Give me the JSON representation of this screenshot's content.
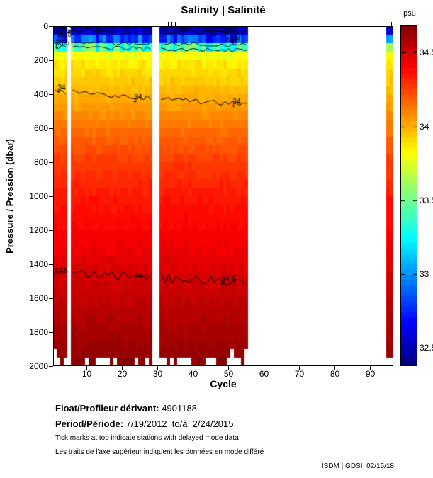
{
  "title": "Salinity | Salinité",
  "colorbar": {
    "unit": "psu",
    "ticks": [
      34.5,
      34,
      33.5,
      33,
      32.5
    ]
  },
  "axes": {
    "x_label": "Cycle",
    "y_label": "Pressure / Pression (dbar)",
    "x_ticks": [
      10,
      20,
      30,
      40,
      50,
      60,
      70,
      80,
      90
    ],
    "y_ticks": [
      0,
      200,
      400,
      600,
      800,
      1000,
      1200,
      1400,
      1600,
      1800,
      2000
    ]
  },
  "footer": {
    "float_label": "Float/Profileur dérivant:",
    "float_value": " 4901188",
    "period_label": "Period/Période:",
    "period_value": " 7/19/2012  to/à  2/24/2015",
    "note_en": "Tick marks at top indicate stations with delayed mode data",
    "note_fr": "Les traits de l'axe supérieur indiquent les données en mode différé",
    "credit": "ISDM | GDSI  02/15/18"
  },
  "chart_data": {
    "type": "heatmap",
    "title": "Salinity | Salinité",
    "xlabel": "Cycle",
    "ylabel": "Pressure / Pression (dbar)",
    "colorbar_label": "psu",
    "colormap": "jet",
    "value_range_psu": [
      32.38,
      34.68
    ],
    "colorbar_tick_values": [
      34.5,
      34,
      33.5,
      33,
      32.5
    ],
    "x_range_cycles": [
      0.5,
      96.5
    ],
    "y_range_dbar": [
      0,
      2000
    ],
    "grid": false,
    "cycles_with_data": [
      [
        1,
        4
      ],
      [
        6,
        28
      ],
      [
        31,
        55
      ],
      [
        95,
        96
      ]
    ],
    "representative_profile": {
      "depth_dbar": [
        0,
        50,
        100,
        150,
        200,
        300,
        400,
        500,
        600,
        800,
        1000,
        1200,
        1400,
        1500,
        1600,
        1800,
        2000
      ],
      "salinity_psu": [
        32.45,
        32.6,
        33.1,
        33.75,
        33.85,
        33.92,
        33.99,
        34.06,
        34.14,
        34.26,
        34.34,
        34.4,
        34.46,
        34.5,
        34.53,
        34.59,
        34.65
      ]
    },
    "cell_size": {
      "cycles": 1,
      "dbar": 50
    },
    "contours": [
      {
        "value": 32.5,
        "segments": [
          [
            1,
            16
          ],
          [
            33,
            55
          ]
        ],
        "depth_start": 22,
        "depth_end": 34,
        "wiggle": 12
      },
      {
        "value": 33.0,
        "segments": [
          [
            1,
            4
          ],
          [
            6,
            28
          ],
          [
            31,
            55
          ]
        ],
        "depth_start": 95,
        "depth_end": 112,
        "wiggle": 13
      },
      {
        "value": 33.5,
        "segments": [
          [
            1,
            4
          ],
          [
            6,
            28
          ],
          [
            31,
            55
          ]
        ],
        "depth_start": 122,
        "depth_end": 142,
        "wiggle": 13
      },
      {
        "value": 34.0,
        "segments": [
          [
            1,
            4
          ],
          [
            6,
            28
          ],
          [
            31,
            55
          ]
        ],
        "depth_start": 383,
        "depth_end": 462,
        "wiggle": 16
      },
      {
        "value": 34.5,
        "segments": [
          [
            1,
            4
          ],
          [
            6,
            28
          ],
          [
            31,
            55
          ]
        ],
        "depth_start": 1452,
        "depth_end": 1505,
        "wiggle": 28
      }
    ],
    "contour_labels": [
      {
        "text": "34",
        "cycle": 3.0,
        "depth": 372,
        "plus": true
      },
      {
        "text": "34",
        "cycle": 24.6,
        "depth": 428,
        "plus": true
      },
      {
        "text": "34",
        "cycle": 52.4,
        "depth": 455,
        "plus": true
      },
      {
        "text": "34.5",
        "cycle": 2.0,
        "depth": 1448,
        "plus": true
      },
      {
        "text": "34.5",
        "cycle": 24.6,
        "depth": 1478,
        "plus": true
      },
      {
        "text": "34.5",
        "cycle": 49.2,
        "depth": 1498,
        "plus": true
      },
      {
        "text": "32.5",
        "cycle": 6.0,
        "depth": 22,
        "plus": true
      },
      {
        "text": "33.5",
        "cycle": 2.4,
        "depth": 108,
        "plus": true
      },
      {
        "text": "32.5",
        "cycle": 3.0,
        "depth": 60,
        "plus": false
      },
      {
        "text": "33.5",
        "cycle": 37.2,
        "depth": 14,
        "plus": false
      },
      {
        "text": "32.5",
        "cycle": 44.6,
        "depth": 8,
        "plus": true
      },
      {
        "text": "33",
        "cycle": 45.6,
        "depth": 56,
        "plus": true
      },
      {
        "text": "32.5",
        "cycle": 47.8,
        "depth": 30,
        "plus": false
      },
      {
        "text": "33",
        "cycle": 52.2,
        "depth": 80,
        "plus": true
      },
      {
        "text": "33.5",
        "cycle": 50.4,
        "depth": 92,
        "plus": false
      }
    ],
    "delayed_mode_tick_cycles": [
      23,
      33,
      34,
      35,
      36,
      73,
      84,
      96
    ],
    "noise_seed": 42
  }
}
